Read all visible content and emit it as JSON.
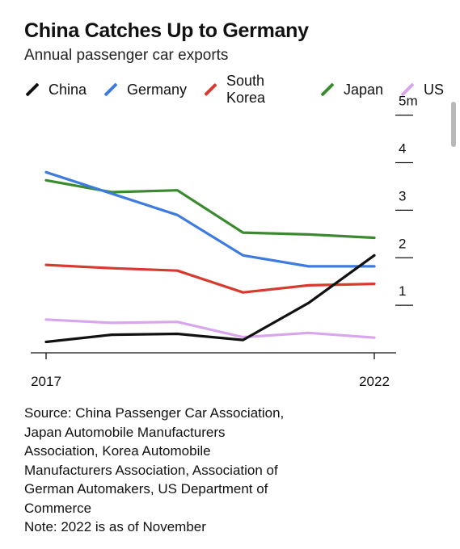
{
  "title": "China Catches Up to Germany",
  "subtitle": "Annual passenger car exports",
  "source_lines": [
    "Source: China Passenger Car Association,",
    "Japan Automobile Manufacturers",
    "Association, Korea Automobile",
    "Manufacturers Association, Association of",
    "German Automakers, US Department of",
    "Commerce",
    "Note: 2022 is as of November"
  ],
  "chart_data": {
    "type": "line",
    "title": "China Catches Up to Germany",
    "subtitle": "Annual passenger car exports",
    "x": [
      2017,
      2018,
      2019,
      2020,
      2021,
      2022
    ],
    "x_tick_labels": [
      "2017",
      "2022"
    ],
    "y_tick_labels": [
      "5m",
      "4",
      "3",
      "2",
      "1"
    ],
    "y_ticks": [
      5,
      4,
      3,
      2,
      1
    ],
    "ylim": [
      0,
      5.3
    ],
    "xlim": [
      2017,
      2022
    ],
    "legend_position": "top",
    "y_axis_side": "right",
    "series": [
      {
        "name": "China",
        "color": "#111111",
        "values": [
          0.23,
          0.38,
          0.4,
          0.27,
          1.05,
          2.05
        ]
      },
      {
        "name": "Germany",
        "color": "#3d7be0",
        "values": [
          3.8,
          3.35,
          2.9,
          2.05,
          1.82,
          1.82
        ]
      },
      {
        "name": "South Korea",
        "color": "#d73a2e",
        "values": [
          1.85,
          1.78,
          1.73,
          1.27,
          1.42,
          1.45
        ]
      },
      {
        "name": "Japan",
        "color": "#3a8a2e",
        "values": [
          3.63,
          3.38,
          3.42,
          2.53,
          2.49,
          2.42
        ]
      },
      {
        "name": "US",
        "color": "#d9a6ee",
        "values": [
          0.7,
          0.63,
          0.65,
          0.33,
          0.42,
          0.32
        ]
      }
    ]
  }
}
